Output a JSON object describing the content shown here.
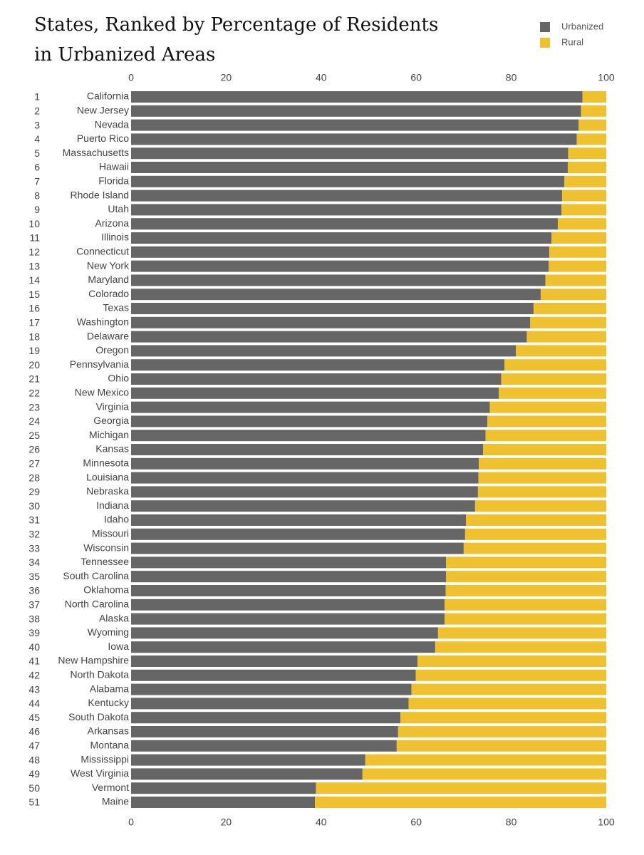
{
  "chart_data": {
    "type": "stacked-barh",
    "title": "States, Ranked by Percentage of Residents in Urbanized Areas",
    "ranks": [
      1,
      2,
      3,
      4,
      5,
      6,
      7,
      8,
      9,
      10,
      11,
      12,
      13,
      14,
      15,
      16,
      17,
      18,
      19,
      20,
      21,
      22,
      23,
      24,
      25,
      26,
      27,
      28,
      29,
      30,
      31,
      32,
      33,
      34,
      35,
      36,
      37,
      38,
      39,
      40,
      41,
      42,
      43,
      44,
      45,
      46,
      47,
      48,
      49,
      50,
      51
    ],
    "categories": [
      "California",
      "New Jersey",
      "Nevada",
      "Puerto Rico",
      "Massachusetts",
      "Hawaii",
      "Florida",
      "Rhode Island",
      "Utah",
      "Arizona",
      "Illinois",
      "Connecticut",
      "New York",
      "Maryland",
      "Colorado",
      "Texas",
      "Washington",
      "Delaware",
      "Oregon",
      "Pennsylvania",
      "Ohio",
      "New Mexico",
      "Virginia",
      "Georgia",
      "Michigan",
      "Kansas",
      "Minnesota",
      "Louisiana",
      "Nebraska",
      "Indiana",
      "Idaho",
      "Missouri",
      "Wisconsin",
      "Tennessee",
      "South Carolina",
      "Oklahoma",
      "North Carolina",
      "Alaska",
      "Wyoming",
      "Iowa",
      "New Hampshire",
      "North Dakota",
      "Alabama",
      "Kentucky",
      "South Dakota",
      "Arkansas",
      "Montana",
      "Mississippi",
      "West Virginia",
      "Vermont",
      "Maine"
    ],
    "series": [
      {
        "name": "Urbanized",
        "color": "#666666",
        "values": [
          95.0,
          94.7,
          94.2,
          93.8,
          92.0,
          91.9,
          91.2,
          90.7,
          90.6,
          89.8,
          88.5,
          88.0,
          87.9,
          87.2,
          86.2,
          84.7,
          84.0,
          83.3,
          81.0,
          78.6,
          77.9,
          77.4,
          75.5,
          75.0,
          74.6,
          74.1,
          73.2,
          73.1,
          73.0,
          72.4,
          70.5,
          70.3,
          70.0,
          66.3,
          66.3,
          66.2,
          66.0,
          66.0,
          64.6,
          64.0,
          60.3,
          59.9,
          59.0,
          58.4,
          56.7,
          56.2,
          55.9,
          49.3,
          48.7,
          38.9,
          38.7
        ]
      },
      {
        "name": "Rural",
        "color": "#f0c12f",
        "values": [
          5.0,
          5.3,
          5.8,
          6.2,
          8.0,
          8.1,
          8.8,
          9.3,
          9.4,
          10.2,
          11.5,
          12.0,
          12.1,
          12.8,
          13.8,
          15.3,
          16.0,
          16.7,
          19.0,
          21.4,
          22.1,
          22.6,
          24.5,
          25.0,
          25.4,
          25.9,
          26.8,
          26.9,
          27.0,
          27.6,
          29.5,
          29.7,
          30.0,
          33.7,
          33.7,
          33.8,
          34.0,
          34.0,
          35.4,
          36.0,
          39.7,
          40.1,
          41.0,
          41.6,
          43.3,
          43.8,
          44.1,
          50.7,
          51.3,
          61.1,
          61.3
        ]
      }
    ],
    "xlim": [
      0,
      100
    ],
    "xticks": [
      0,
      20,
      40,
      60,
      80,
      100
    ],
    "legend": "top-right",
    "grid": false
  }
}
